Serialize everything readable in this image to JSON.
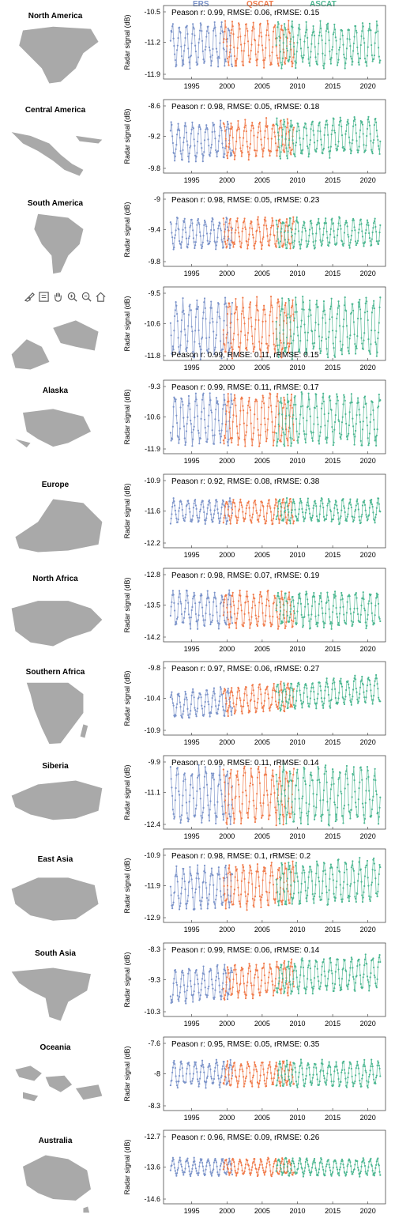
{
  "legend": {
    "series": [
      {
        "name": "ERS",
        "color": "#7b93c9"
      },
      {
        "name": "QSCAT",
        "color": "#f07a4a"
      },
      {
        "name": "ASCAT",
        "color": "#4cb791"
      }
    ]
  },
  "toolbar": {
    "icons": [
      "brush-icon",
      "datatip-icon",
      "pan-icon",
      "zoom-in-icon",
      "zoom-out-icon",
      "home-icon"
    ]
  },
  "colors": {
    "ers": "#7b93c9",
    "qscat": "#f07a4a",
    "ascat": "#4cb791",
    "map": "#a9a9a9",
    "axis": "#333333"
  },
  "chart_data": [
    {
      "type": "line",
      "region": "North America",
      "ylabel": "Radar signal (dB)",
      "yticks": [
        "-10.5",
        "-11.2",
        "-11.9"
      ],
      "ylim": [
        -12.0,
        -10.4
      ],
      "mean": -11.25,
      "amp": 0.42,
      "trend": 0.0,
      "annotation": "Peason r: 0.99, RMSE: 0.06, rRMSE: 0.15",
      "xticks": [
        "1995",
        "2000",
        "2005",
        "2010",
        "2015",
        "2020"
      ],
      "xlim": [
        1991,
        2022.5
      ],
      "series_periods": {
        "ERS": [
          1992,
          2000.8
        ],
        "QSCAT": [
          1999.5,
          2009.5
        ],
        "ASCAT": [
          2007,
          2021.8
        ]
      }
    },
    {
      "type": "line",
      "region": "Central America",
      "ylabel": "Radar signal (dB)",
      "yticks": [
        "-8.6",
        "-9.2",
        "-9.8"
      ],
      "ylim": [
        -9.9,
        -8.5
      ],
      "mean": -9.25,
      "amp": 0.32,
      "trend": 0.004,
      "annotation": "Peason r: 0.98, RMSE: 0.05, rRMSE: 0.18",
      "xticks": [
        "1995",
        "2000",
        "2005",
        "2010",
        "2015",
        "2020"
      ],
      "xlim": [
        1991,
        2022.5
      ],
      "series_periods": {
        "ERS": [
          1992,
          2000.8
        ],
        "QSCAT": [
          1999.5,
          2009.5
        ],
        "ASCAT": [
          2007,
          2021.8
        ]
      }
    },
    {
      "type": "line",
      "region": "South America",
      "ylabel": "Radar signal (dB)",
      "yticks": [
        "-9",
        "-9.4",
        "-9.8"
      ],
      "ylim": [
        -9.9,
        -8.9
      ],
      "mean": -9.45,
      "amp": 0.18,
      "trend": 0.0,
      "annotation": "Peason r: 0.98, RMSE: 0.05, rRMSE: 0.23",
      "xticks": [
        "1995",
        "2000",
        "2005",
        "2010",
        "2015",
        "2020"
      ],
      "xlim": [
        1991,
        2022.5
      ],
      "series_periods": {
        "ERS": [
          1992,
          2000.8
        ],
        "QSCAT": [
          1999.5,
          2009.5
        ],
        "ASCAT": [
          2007,
          2021.8
        ]
      }
    },
    {
      "type": "line",
      "region": "",
      "ylabel": "Radar signal (dB)",
      "yticks": [
        "-9.5",
        "-10.6",
        "-11.8"
      ],
      "ylim": [
        -11.9,
        -9.3
      ],
      "mean": -10.75,
      "amp": 0.9,
      "trend": 0.0,
      "annotation": "Peason r: 0.99, RMSE: 0.11, rRMSE: 0.15",
      "annotation_pos": "bottom",
      "xticks": [
        "1995",
        "2000",
        "2005",
        "2010",
        "2015",
        "2020"
      ],
      "xlim": [
        1991,
        2022.5
      ],
      "series_periods": {
        "ERS": [
          1992,
          2000.8
        ],
        "QSCAT": [
          1999.5,
          2009.5
        ],
        "ASCAT": [
          2007,
          2021.8
        ]
      }
    },
    {
      "type": "line",
      "region": "Alaska",
      "ylabel": "Radar signal (dB)",
      "yticks": [
        "-9.3",
        "-10.6",
        "-11.9"
      ],
      "ylim": [
        -12.0,
        -9.2
      ],
      "mean": -10.7,
      "amp": 0.85,
      "trend": 0.0,
      "annotation": "Peason r: 0.99, RMSE: 0.11, rRMSE: 0.17",
      "xticks": [
        "1995",
        "2000",
        "2005",
        "2010",
        "2015",
        "2020"
      ],
      "xlim": [
        1991,
        2022.5
      ],
      "series_periods": {
        "ERS": [
          1992,
          2000.8
        ],
        "QSCAT": [
          1999.5,
          2009.5
        ],
        "ASCAT": [
          2007,
          2021.8
        ]
      }
    },
    {
      "type": "line",
      "region": "Europe",
      "ylabel": "Radar signal (dB)",
      "yticks": [
        "-10.9",
        "-11.6",
        "-12.2"
      ],
      "ylim": [
        -12.3,
        -10.8
      ],
      "mean": -11.55,
      "amp": 0.22,
      "trend": 0.0,
      "annotation": "Peason r: 0.92, RMSE: 0.08, rRMSE: 0.38",
      "xticks": [
        "1995",
        "2000",
        "2005",
        "2010",
        "2015",
        "2020"
      ],
      "xlim": [
        1991,
        2022.5
      ],
      "series_periods": {
        "ERS": [
          1992,
          2000.8
        ],
        "QSCAT": [
          1999.5,
          2009.5
        ],
        "ASCAT": [
          2007,
          2021.8
        ]
      }
    },
    {
      "type": "line",
      "region": "North Africa",
      "ylabel": "Radar signal (dB)",
      "yticks": [
        "-12.8",
        "-13.5",
        "-14.2"
      ],
      "ylim": [
        -14.3,
        -12.7
      ],
      "mean": -13.6,
      "amp": 0.35,
      "trend": 0.0,
      "annotation": "Peason r: 0.98, RMSE: 0.07, rRMSE: 0.19",
      "xticks": [
        "1995",
        "2000",
        "2005",
        "2010",
        "2015",
        "2020"
      ],
      "xlim": [
        1991,
        2022.5
      ],
      "series_periods": {
        "ERS": [
          1992,
          2000.8
        ],
        "QSCAT": [
          1999.5,
          2009.5
        ],
        "ASCAT": [
          2007,
          2021.8
        ]
      }
    },
    {
      "type": "line",
      "region": "Southern Africa",
      "ylabel": "Radar signal (dB)",
      "yticks": [
        "-9.8",
        "-10.4",
        "-10.9"
      ],
      "ylim": [
        -11.0,
        -9.7
      ],
      "mean": -10.35,
      "amp": 0.22,
      "trend": 0.01,
      "annotation": "Peason r: 0.97, RMSE: 0.06, rRMSE: 0.27",
      "xticks": [
        "1995",
        "2000",
        "2005",
        "2010",
        "2015",
        "2020"
      ],
      "xlim": [
        1991,
        2022.5
      ],
      "series_periods": {
        "ERS": [
          1992,
          2000.8
        ],
        "QSCAT": [
          1999.5,
          2009.5
        ],
        "ASCAT": [
          2007,
          2021.8
        ]
      }
    },
    {
      "type": "line",
      "region": "Siberia",
      "ylabel": "Radar signal (dB)",
      "yticks": [
        "-9.9",
        "-11.1",
        "-12.4"
      ],
      "ylim": [
        -12.5,
        -9.7
      ],
      "mean": -11.2,
      "amp": 0.95,
      "trend": 0.0,
      "annotation": "Peason r: 0.99, RMSE: 0.11, rRMSE: 0.14",
      "xticks": [
        "1995",
        "2000",
        "2005",
        "2010",
        "2015",
        "2020"
      ],
      "xlim": [
        1991,
        2022.5
      ],
      "series_periods": {
        "ERS": [
          1992,
          2000.8
        ],
        "QSCAT": [
          1999.5,
          2009.5
        ],
        "ASCAT": [
          2007,
          2021.8
        ]
      }
    },
    {
      "type": "line",
      "region": "East Asia",
      "ylabel": "Radar signal (dB)",
      "yticks": [
        "-10.9",
        "-11.9",
        "-12.9"
      ],
      "ylim": [
        -13.0,
        -10.7
      ],
      "mean": -11.85,
      "amp": 0.6,
      "trend": 0.01,
      "annotation": "Peason r: 0.98, RMSE: 0.1, rRMSE: 0.2",
      "xticks": [
        "1995",
        "2000",
        "2005",
        "2010",
        "2015",
        "2020"
      ],
      "xlim": [
        1991,
        2022.5
      ],
      "series_periods": {
        "ERS": [
          1992,
          2000.8
        ],
        "QSCAT": [
          1999.5,
          2009.5
        ],
        "ASCAT": [
          2007,
          2021.8
        ]
      }
    },
    {
      "type": "line",
      "region": "South Asia",
      "ylabel": "Radar signal (dB)",
      "yticks": [
        "-8.3",
        "-9.3",
        "-10.3"
      ],
      "ylim": [
        -10.4,
        -8.2
      ],
      "mean": -9.3,
      "amp": 0.45,
      "trend": 0.015,
      "annotation": "Peason r: 0.99, RMSE: 0.06, rRMSE: 0.14",
      "xticks": [
        "1995",
        "2000",
        "2005",
        "2010",
        "2015",
        "2020"
      ],
      "xlim": [
        1991,
        2022.5
      ],
      "series_periods": {
        "ERS": [
          1992,
          2000.8
        ],
        "QSCAT": [
          1999.5,
          2009.5
        ],
        "ASCAT": [
          2007,
          2021.8
        ]
      }
    },
    {
      "type": "line",
      "region": "Oceania",
      "ylabel": "Radar signal (dB)",
      "yticks": [
        "-7.6",
        "-8",
        "-8.3"
      ],
      "ylim": [
        -8.4,
        -7.5
      ],
      "mean": -7.95,
      "amp": 0.14,
      "trend": 0.0,
      "annotation": "Peason r: 0.95, RMSE: 0.05, rRMSE: 0.35",
      "xticks": [
        "1995",
        "2000",
        "2005",
        "2010",
        "2015",
        "2020"
      ],
      "xlim": [
        1991,
        2022.5
      ],
      "series_periods": {
        "ERS": [
          1992,
          2000.8
        ],
        "QSCAT": [
          1999.5,
          2009.5
        ],
        "ASCAT": [
          2007,
          2021.8
        ]
      }
    },
    {
      "type": "line",
      "region": "Australia",
      "ylabel": "Radar signal (dB)",
      "yticks": [
        "-12.7",
        "-13.6",
        "-14.6"
      ],
      "ylim": [
        -14.7,
        -12.6
      ],
      "mean": -13.65,
      "amp": 0.22,
      "trend": 0.0,
      "annotation": "Peason r: 0.96, RMSE: 0.09, rRMSE: 0.26",
      "xticks": [
        "1995",
        "2000",
        "2005",
        "2010",
        "2015",
        "2020"
      ],
      "xlim": [
        1991,
        2022.5
      ],
      "series_periods": {
        "ERS": [
          1992,
          2000.8
        ],
        "QSCAT": [
          1999.5,
          2009.5
        ],
        "ASCAT": [
          2007,
          2021.8
        ]
      }
    }
  ]
}
